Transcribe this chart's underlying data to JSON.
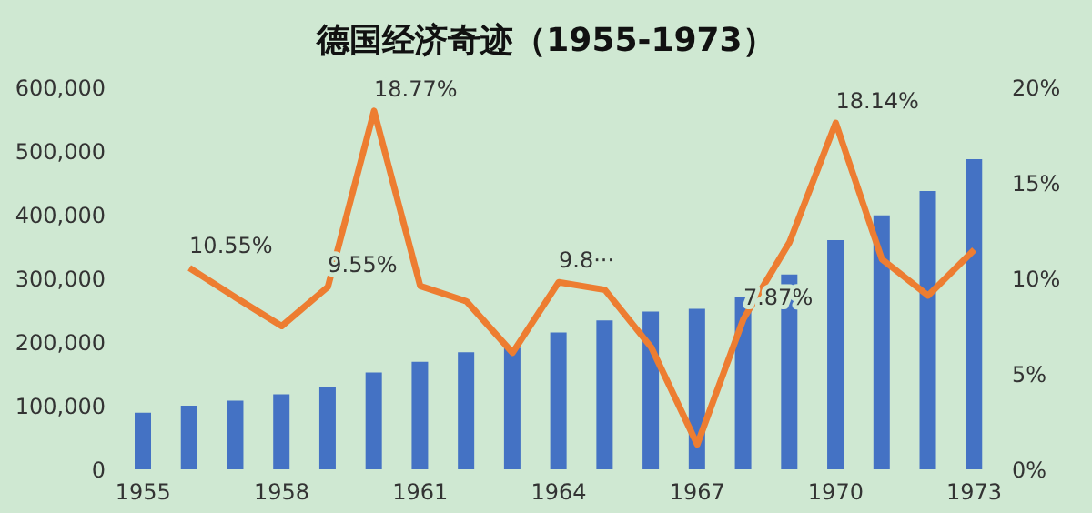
{
  "chart_data": {
    "type": "bar",
    "title": "德国经济奇迹（1955-1973）",
    "categories": [
      "1955",
      null,
      null,
      "1958",
      null,
      null,
      "1961",
      null,
      null,
      "1964",
      null,
      null,
      "1967",
      null,
      null,
      "1970",
      null,
      null,
      "1973"
    ],
    "series": [
      {
        "color": "#4472c4",
        "values": [
          89000,
          100000,
          108000,
          118000,
          129000,
          152000,
          169000,
          184000,
          191000,
          215000,
          234000,
          248000,
          252000,
          271000,
          306000,
          360000,
          399000,
          437000,
          487000
        ]
      },
      {
        "type": "line",
        "axis": "y2",
        "color": "#ed7d31",
        "values": [
          null,
          10.55,
          9.0,
          7.5,
          9.55,
          18.77,
          9.6,
          8.8,
          6.1,
          9.8,
          9.4,
          6.4,
          1.3,
          7.87,
          11.9,
          18.14,
          11.0,
          9.1,
          11.5
        ],
        "value_labels": [
          null,
          "10.55%",
          null,
          null,
          "9.55%",
          "18.77%",
          null,
          null,
          null,
          "9.8···",
          null,
          null,
          null,
          "7.87%",
          null,
          "18.14%",
          null,
          null,
          null
        ]
      }
    ],
    "ylim": [
      0,
      600000
    ],
    "yticks": [
      {
        "value": 0,
        "label": "0"
      },
      {
        "value": 100000,
        "label": "100,000"
      },
      {
        "value": 200000,
        "label": "200,000"
      },
      {
        "value": 300000,
        "label": "300,000"
      },
      {
        "value": 400000,
        "label": "400,000"
      },
      {
        "value": 500000,
        "label": "500,000"
      },
      {
        "value": 600000,
        "label": "600,000"
      }
    ],
    "y2lim": [
      0,
      20
    ],
    "y2ticks": [
      {
        "value": 0,
        "label": "0%"
      },
      {
        "value": 5,
        "label": "5%"
      },
      {
        "value": 10,
        "label": "10%"
      },
      {
        "value": 15,
        "label": "15%"
      },
      {
        "value": 20,
        "label": "20%"
      }
    ],
    "grid": false,
    "legend": false,
    "marker": "none"
  }
}
